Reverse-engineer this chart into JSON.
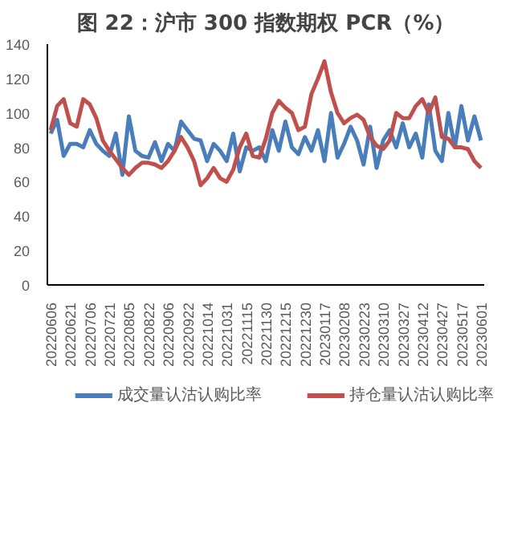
{
  "chart_data": {
    "type": "line",
    "title": "图 22：沪市 300 指数期权 PCR（%）",
    "categories": [
      "20220606",
      null,
      null,
      "20220621",
      null,
      null,
      "20220706",
      null,
      null,
      "20220721",
      null,
      null,
      "20220805",
      null,
      null,
      "20220822",
      null,
      null,
      "20220906",
      null,
      null,
      "20220922",
      null,
      null,
      "20221014",
      null,
      null,
      "20221031",
      null,
      null,
      "20221115",
      null,
      null,
      "20221130",
      null,
      null,
      "20221215",
      null,
      null,
      "20221230",
      null,
      null,
      "20230117",
      null,
      null,
      "20230208",
      null,
      null,
      "20230223",
      null,
      null,
      "20230310",
      null,
      null,
      "20230327",
      null,
      null,
      "20230412",
      null,
      null,
      "20230427",
      null,
      null,
      "20230517",
      null,
      null,
      "20230601"
    ],
    "series": [
      {
        "name": "成交量认沽认购比率",
        "color": "#4a7ebb",
        "values": [
          88,
          96,
          75,
          82,
          82,
          80,
          90,
          82,
          78,
          75,
          88,
          64,
          98,
          78,
          75,
          74,
          83,
          72,
          82,
          78,
          95,
          90,
          85,
          84,
          72,
          82,
          78,
          72,
          88,
          66,
          80,
          78,
          80,
          72,
          90,
          78,
          95,
          80,
          76,
          86,
          78,
          90,
          72,
          100,
          74,
          82,
          92,
          84,
          70,
          92,
          68,
          84,
          90,
          80,
          94,
          80,
          88,
          74,
          105,
          78,
          72,
          100,
          80,
          104,
          84,
          98,
          84
        ]
      },
      {
        "name": "持仓量认沽认购比率",
        "color": "#c0504d",
        "values": [
          90,
          104,
          108,
          94,
          92,
          108,
          105,
          97,
          84,
          78,
          73,
          68,
          64,
          68,
          71,
          71,
          70,
          68,
          72,
          78,
          86,
          80,
          72,
          58,
          62,
          68,
          62,
          60,
          67,
          80,
          88,
          75,
          74,
          85,
          100,
          107,
          103,
          100,
          90,
          92,
          111,
          120,
          130,
          112,
          100,
          94,
          97,
          99,
          96,
          86,
          81,
          79,
          84,
          100,
          97,
          97,
          104,
          108,
          100,
          109,
          86,
          85,
          80,
          80,
          79,
          72,
          68
        ]
      }
    ],
    "ylim": [
      0,
      140
    ],
    "yticks": [
      0,
      20,
      40,
      60,
      80,
      100,
      120,
      140
    ],
    "grid": false,
    "legend": "bottom",
    "line_style": "solid",
    "marker": "none"
  }
}
